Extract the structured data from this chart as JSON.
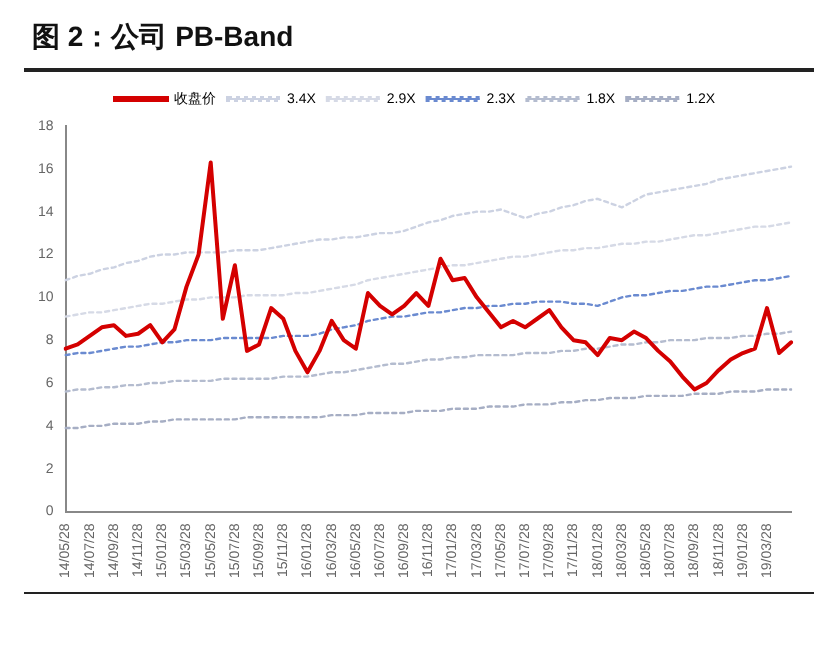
{
  "chart_data": {
    "type": "line",
    "title": "图 2：公司 PB-Band",
    "categories": [
      "14/05/28",
      null,
      "14/07/28",
      null,
      "14/09/28",
      null,
      "14/11/28",
      null,
      "15/01/28",
      null,
      "15/03/28",
      null,
      "15/05/28",
      null,
      "15/07/28",
      null,
      "15/09/28",
      null,
      "15/11/28",
      null,
      "16/01/28",
      null,
      "16/03/28",
      null,
      "16/05/28",
      null,
      "16/07/28",
      null,
      "16/09/28",
      null,
      "16/11/28",
      null,
      "17/01/28",
      null,
      "17/03/28",
      null,
      "17/05/28",
      null,
      "17/07/28",
      null,
      "17/09/28",
      null,
      "17/11/28",
      null,
      "18/01/28",
      null,
      "18/03/28",
      null,
      "18/05/28",
      null,
      "18/07/28",
      null,
      "18/09/28",
      null,
      "18/11/28",
      null,
      "19/01/28",
      null,
      "19/03/28",
      null,
      null
    ],
    "series": [
      {
        "name": "收盘价",
        "color": "#d40000",
        "line_style": "solid",
        "values": [
          7.6,
          7.8,
          8.2,
          8.6,
          8.7,
          8.2,
          8.3,
          8.7,
          7.9,
          8.5,
          10.5,
          12.0,
          16.3,
          9.0,
          11.5,
          7.5,
          7.8,
          9.5,
          9.0,
          7.5,
          6.5,
          7.5,
          8.9,
          8.0,
          7.6,
          10.2,
          9.6,
          9.2,
          9.6,
          10.2,
          9.6,
          11.8,
          10.8,
          10.9,
          10.0,
          9.3,
          8.6,
          8.9,
          8.6,
          9.0,
          9.4,
          8.6,
          8.0,
          7.9,
          7.3,
          8.1,
          8.0,
          8.4,
          8.1,
          7.5,
          7.0,
          6.3,
          5.7,
          6.0,
          6.6,
          7.1,
          7.4,
          7.6,
          9.5,
          7.4,
          7.9
        ]
      },
      {
        "name": "3.4X",
        "color": "#ccd2e2",
        "line_style": "dotted",
        "values": [
          10.8,
          11.0,
          11.1,
          11.3,
          11.4,
          11.6,
          11.7,
          11.9,
          12.0,
          12.0,
          12.1,
          12.1,
          12.1,
          12.1,
          12.2,
          12.2,
          12.2,
          12.3,
          12.4,
          12.5,
          12.6,
          12.7,
          12.7,
          12.8,
          12.8,
          12.9,
          13.0,
          13.0,
          13.1,
          13.3,
          13.5,
          13.6,
          13.8,
          13.9,
          14.0,
          14.0,
          14.1,
          13.9,
          13.7,
          13.9,
          14.0,
          14.2,
          14.3,
          14.5,
          14.6,
          14.4,
          14.2,
          14.5,
          14.8,
          14.9,
          15.0,
          15.1,
          15.2,
          15.3,
          15.5,
          15.6,
          15.7,
          15.8,
          15.9,
          16.0,
          16.1
        ]
      },
      {
        "name": "2.9X",
        "color": "#d6dae6",
        "line_style": "dotted",
        "values": [
          9.1,
          9.2,
          9.3,
          9.3,
          9.4,
          9.5,
          9.6,
          9.7,
          9.7,
          9.8,
          9.9,
          9.9,
          10.0,
          10.0,
          10.0,
          10.1,
          10.1,
          10.1,
          10.1,
          10.2,
          10.2,
          10.3,
          10.4,
          10.5,
          10.6,
          10.8,
          10.9,
          11.0,
          11.1,
          11.2,
          11.3,
          11.4,
          11.5,
          11.5,
          11.6,
          11.7,
          11.8,
          11.9,
          11.9,
          12.0,
          12.1,
          12.2,
          12.2,
          12.3,
          12.3,
          12.4,
          12.5,
          12.5,
          12.6,
          12.6,
          12.7,
          12.8,
          12.9,
          12.9,
          13.0,
          13.1,
          13.2,
          13.3,
          13.3,
          13.4,
          13.5
        ]
      },
      {
        "name": "2.3X",
        "color": "#6a8ad0",
        "line_style": "dotted",
        "values": [
          7.3,
          7.4,
          7.4,
          7.5,
          7.6,
          7.7,
          7.7,
          7.8,
          7.9,
          7.9,
          8.0,
          8.0,
          8.0,
          8.1,
          8.1,
          8.1,
          8.1,
          8.1,
          8.2,
          8.2,
          8.2,
          8.3,
          8.5,
          8.6,
          8.7,
          8.9,
          9.0,
          9.1,
          9.1,
          9.2,
          9.3,
          9.3,
          9.4,
          9.5,
          9.5,
          9.6,
          9.6,
          9.7,
          9.7,
          9.8,
          9.8,
          9.8,
          9.7,
          9.7,
          9.6,
          9.8,
          10.0,
          10.1,
          10.1,
          10.2,
          10.3,
          10.3,
          10.4,
          10.5,
          10.5,
          10.6,
          10.7,
          10.8,
          10.8,
          10.9,
          11.0
        ]
      },
      {
        "name": "1.8X",
        "color": "#b4bccf",
        "line_style": "dotted",
        "values": [
          5.6,
          5.7,
          5.7,
          5.8,
          5.8,
          5.9,
          5.9,
          6.0,
          6.0,
          6.1,
          6.1,
          6.1,
          6.1,
          6.2,
          6.2,
          6.2,
          6.2,
          6.2,
          6.3,
          6.3,
          6.3,
          6.4,
          6.5,
          6.5,
          6.6,
          6.7,
          6.8,
          6.9,
          6.9,
          7.0,
          7.1,
          7.1,
          7.2,
          7.2,
          7.3,
          7.3,
          7.3,
          7.3,
          7.4,
          7.4,
          7.4,
          7.5,
          7.5,
          7.6,
          7.6,
          7.7,
          7.8,
          7.8,
          7.9,
          7.9,
          8.0,
          8.0,
          8.0,
          8.1,
          8.1,
          8.1,
          8.2,
          8.2,
          8.3,
          8.3,
          8.4
        ]
      },
      {
        "name": "1.2X",
        "color": "#a6aec4",
        "line_style": "dotted",
        "values": [
          3.9,
          3.9,
          4.0,
          4.0,
          4.1,
          4.1,
          4.1,
          4.2,
          4.2,
          4.3,
          4.3,
          4.3,
          4.3,
          4.3,
          4.3,
          4.4,
          4.4,
          4.4,
          4.4,
          4.4,
          4.4,
          4.4,
          4.5,
          4.5,
          4.5,
          4.6,
          4.6,
          4.6,
          4.6,
          4.7,
          4.7,
          4.7,
          4.8,
          4.8,
          4.8,
          4.9,
          4.9,
          4.9,
          5.0,
          5.0,
          5.0,
          5.1,
          5.1,
          5.2,
          5.2,
          5.3,
          5.3,
          5.3,
          5.4,
          5.4,
          5.4,
          5.4,
          5.5,
          5.5,
          5.5,
          5.6,
          5.6,
          5.6,
          5.7,
          5.7,
          5.7
        ]
      }
    ],
    "ylim": [
      0,
      18
    ],
    "yticks": [
      0,
      2,
      4,
      6,
      8,
      10,
      12,
      14,
      16,
      18
    ],
    "grid": false,
    "legend": "top",
    "marker": "none"
  }
}
